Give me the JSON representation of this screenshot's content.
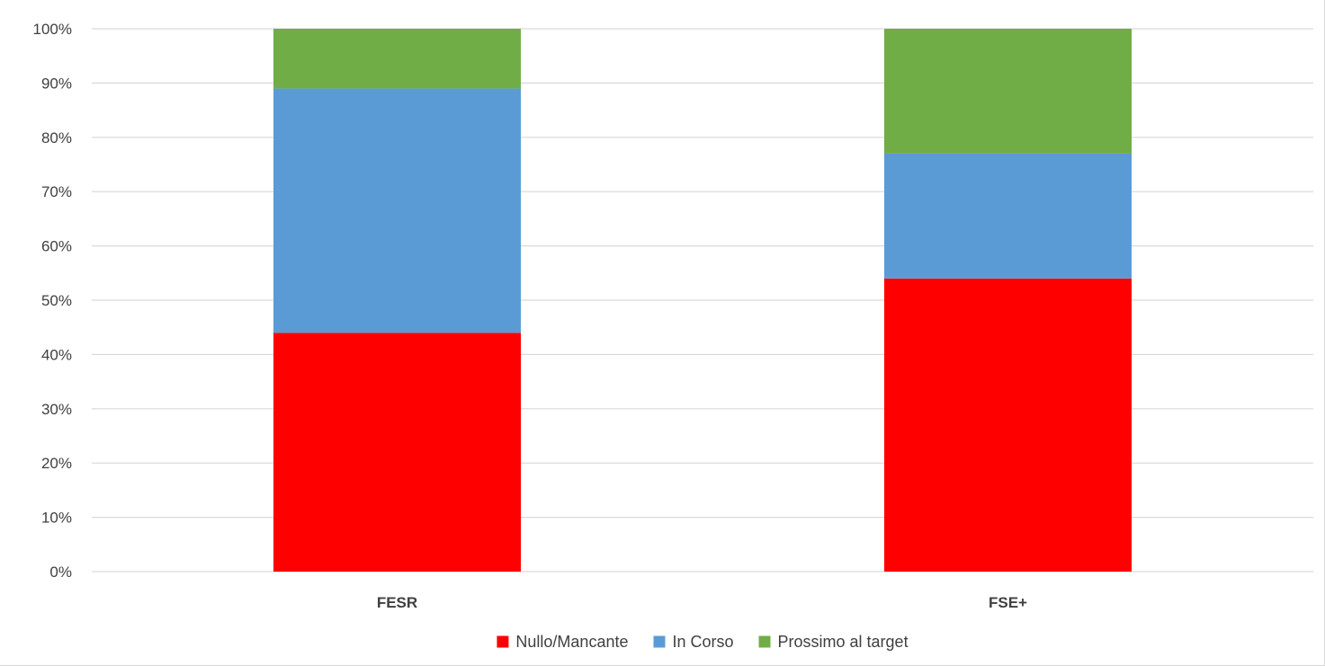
{
  "chart_data": {
    "type": "bar",
    "stacked": true,
    "normalized": true,
    "title": "",
    "xlabel": "",
    "ylabel": "",
    "ylim": [
      0,
      100
    ],
    "yticks": [
      "0%",
      "10%",
      "20%",
      "30%",
      "40%",
      "50%",
      "60%",
      "70%",
      "80%",
      "90%",
      "100%"
    ],
    "categories": [
      "FESR",
      "FSE+"
    ],
    "series": [
      {
        "name": "Nullo/Mancante",
        "color": "#ff0000",
        "values": [
          44,
          54
        ]
      },
      {
        "name": "In Corso",
        "color": "#5b9bd5",
        "values": [
          45,
          23
        ]
      },
      {
        "name": "Prossimo al target",
        "color": "#70ad47",
        "values": [
          11,
          23
        ]
      }
    ],
    "grid": true,
    "legend": "bottom"
  }
}
